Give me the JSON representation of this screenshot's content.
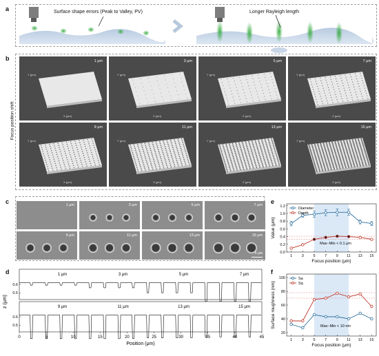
{
  "panels": {
    "a": {
      "letter": "a",
      "annotation_left": "Surface shape errors (Peak to Valley, PV)",
      "annotation_right": "Longer Rayleigh length"
    },
    "b": {
      "letter": "b",
      "side_label": "Focus position shift",
      "tiles": [
        {
          "label": "1 μm"
        },
        {
          "label": "3 μm"
        },
        {
          "label": "5 μm"
        },
        {
          "label": "7 μm"
        },
        {
          "label": "9 μm"
        },
        {
          "label": "11 μm"
        },
        {
          "label": "13 μm"
        },
        {
          "label": "15 μm"
        }
      ],
      "axis_x": "X (μm)",
      "axis_y": "Y (μm)"
    },
    "c": {
      "letter": "c",
      "tiles": [
        {
          "label": "1 μm"
        },
        {
          "label": "3 μm"
        },
        {
          "label": "5 μm"
        },
        {
          "label": "7 μm"
        },
        {
          "label": "9 μm"
        },
        {
          "label": "11 μm"
        },
        {
          "label": "13 μm"
        },
        {
          "label": "15 μm"
        }
      ],
      "scale_bar": "5 μm"
    },
    "d": {
      "letter": "d",
      "ylabel": "z (μm)",
      "xlabel": "Position (μm)",
      "xticks": [
        "0",
        "5",
        "10",
        "15",
        "20",
        "25",
        "30",
        "35",
        "40",
        "45"
      ],
      "top_labels": [
        "1 μm",
        "3 μm",
        "5 μm",
        "7 μm"
      ],
      "bottom_labels": [
        "9 μm",
        "11 μm",
        "13 μm",
        "15 μm"
      ],
      "yticks": [
        "0.5",
        "0.6"
      ]
    },
    "e": {
      "letter": "e",
      "note": "Max−Min < 0.1 μm"
    },
    "f": {
      "letter": "f",
      "note": "Max−Min < 10 nm"
    }
  },
  "chart_data": [
    {
      "type": "line",
      "panel": "e",
      "xlabel": "Focus position (μm)",
      "ylabel": "Value (μm)",
      "x": [
        1,
        3,
        5,
        7,
        9,
        11,
        13,
        15
      ],
      "xticks": [
        "1",
        "3",
        "5",
        "7",
        "9",
        "11",
        "13",
        "15"
      ],
      "yticks": [
        "0.0",
        "0.2",
        "0.4",
        "0.6",
        "0.8",
        "1.0",
        "1.2"
      ],
      "ylim": [
        0,
        1.25
      ],
      "xlim": [
        0.2,
        15.8
      ],
      "shaded_range": [
        5,
        11
      ],
      "series": [
        {
          "name": "Diameter",
          "color": "#2e6f9e",
          "values": [
            0.74,
            0.95,
            0.98,
            1.02,
            1.03,
            1.03,
            0.78,
            0.74
          ],
          "errors": [
            0.06,
            0.05,
            0.08,
            0.08,
            0.09,
            0.08,
            0.05,
            0.05
          ]
        },
        {
          "name": "Depth",
          "color": "#c0392b",
          "values": [
            0.1,
            0.19,
            0.33,
            0.38,
            0.41,
            0.4,
            0.38,
            0.33
          ]
        }
      ],
      "legend": "top-left",
      "ref_lines": [
        0.41,
        0.33
      ]
    },
    {
      "type": "line",
      "panel": "f",
      "xlabel": "Focus position (μm)",
      "ylabel": "Surface roughness (nm)",
      "x": [
        1,
        3,
        5,
        7,
        9,
        11,
        13,
        15
      ],
      "xticks": [
        "1",
        "3",
        "5",
        "7",
        "9",
        "11",
        "13",
        "15"
      ],
      "yticks": [
        "20",
        "40",
        "60",
        "80",
        "100"
      ],
      "ylim": [
        15,
        105
      ],
      "xlim": [
        0.2,
        15.8
      ],
      "shaded_range": [
        5,
        11
      ],
      "series": [
        {
          "name": "Sa",
          "color": "#2e6f9e",
          "values": [
            32,
            27,
            46,
            43,
            43,
            40,
            48,
            40
          ]
        },
        {
          "name": "Sq",
          "color": "#c0392b",
          "values": [
            37,
            37,
            68,
            70,
            77,
            72,
            76,
            58
          ]
        }
      ],
      "legend": "top-left",
      "ref_lines": [
        78,
        70
      ]
    }
  ]
}
